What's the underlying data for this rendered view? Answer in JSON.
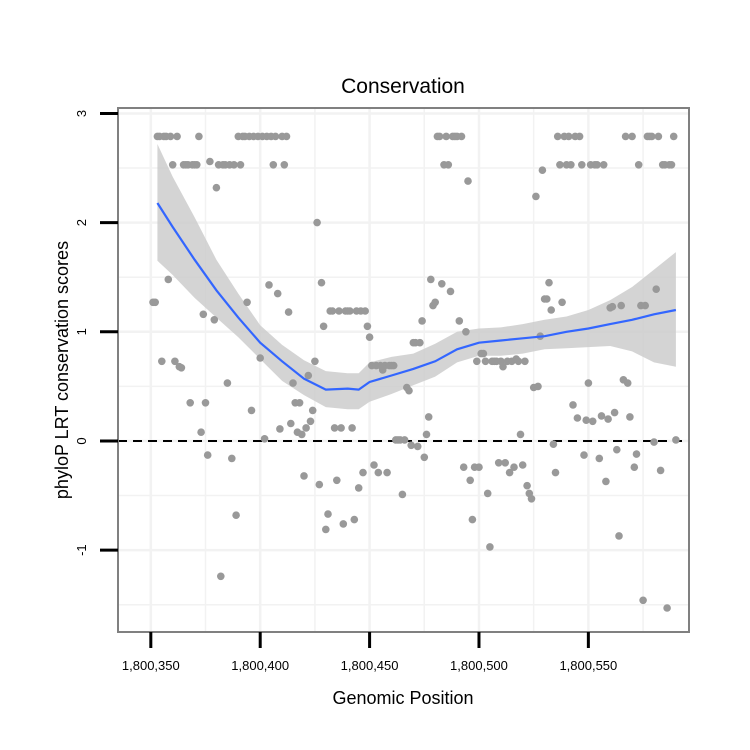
{
  "chart_data": {
    "type": "scatter",
    "title": "Conservation",
    "xlabel": "Genomic Position",
    "ylabel": "phyloP LRT conservation scores",
    "xlim": [
      1800335,
      1800596
    ],
    "ylim": [
      -1.75,
      3.05
    ],
    "x_ticks": [
      1800350,
      1800400,
      1800450,
      1800500,
      1800550
    ],
    "x_tick_labels": [
      "1,800,350",
      "1,800,400",
      "1,800,450",
      "1,800,500",
      "1,800,550"
    ],
    "y_ticks": [
      -1,
      0,
      1,
      2,
      3
    ],
    "y_tick_labels": [
      "-1",
      "0",
      "1",
      "2",
      "3"
    ],
    "reference_line": {
      "y": 0,
      "style": "dashed"
    },
    "points": [
      [
        1800351,
        1.27
      ],
      [
        1800352,
        1.27
      ],
      [
        1800353,
        2.79
      ],
      [
        1800354,
        2.79
      ],
      [
        1800355,
        0.73
      ],
      [
        1800356,
        2.79
      ],
      [
        1800357,
        2.79
      ],
      [
        1800358,
        1.48
      ],
      [
        1800359,
        2.79
      ],
      [
        1800360,
        2.53
      ],
      [
        1800361,
        0.73
      ],
      [
        1800362,
        2.79
      ],
      [
        1800363,
        0.68
      ],
      [
        1800364,
        0.67
      ],
      [
        1800365,
        2.53
      ],
      [
        1800366,
        2.53
      ],
      [
        1800367,
        2.53
      ],
      [
        1800368,
        0.35
      ],
      [
        1800369,
        2.53
      ],
      [
        1800370,
        2.53
      ],
      [
        1800371,
        2.53
      ],
      [
        1800372,
        2.79
      ],
      [
        1800373,
        0.08
      ],
      [
        1800374,
        1.16
      ],
      [
        1800375,
        0.35
      ],
      [
        1800376,
        -0.13
      ],
      [
        1800377,
        2.56
      ],
      [
        1800379,
        1.11
      ],
      [
        1800380,
        2.32
      ],
      [
        1800381,
        2.53
      ],
      [
        1800382,
        -1.24
      ],
      [
        1800383,
        2.53
      ],
      [
        1800384,
        2.53
      ],
      [
        1800385,
        0.53
      ],
      [
        1800386,
        2.53
      ],
      [
        1800387,
        -0.16
      ],
      [
        1800388,
        2.53
      ],
      [
        1800389,
        -0.68
      ],
      [
        1800390,
        2.79
      ],
      [
        1800391,
        2.53
      ],
      [
        1800392,
        2.79
      ],
      [
        1800393,
        2.79
      ],
      [
        1800394,
        1.27
      ],
      [
        1800395,
        2.79
      ],
      [
        1800396,
        0.28
      ],
      [
        1800397,
        2.79
      ],
      [
        1800399,
        2.79
      ],
      [
        1800400,
        0.76
      ],
      [
        1800401,
        2.79
      ],
      [
        1800402,
        0.02
      ],
      [
        1800403,
        2.79
      ],
      [
        1800404,
        1.43
      ],
      [
        1800405,
        2.79
      ],
      [
        1800406,
        2.53
      ],
      [
        1800407,
        2.79
      ],
      [
        1800408,
        1.35
      ],
      [
        1800409,
        0.11
      ],
      [
        1800410,
        2.79
      ],
      [
        1800411,
        2.53
      ],
      [
        1800412,
        2.79
      ],
      [
        1800413,
        1.18
      ],
      [
        1800414,
        0.16
      ],
      [
        1800415,
        0.53
      ],
      [
        1800416,
        0.35
      ],
      [
        1800417,
        0.08
      ],
      [
        1800418,
        0.35
      ],
      [
        1800419,
        0.06
      ],
      [
        1800420,
        -0.32
      ],
      [
        1800421,
        0.12
      ],
      [
        1800422,
        0.6
      ],
      [
        1800423,
        0.18
      ],
      [
        1800424,
        0.28
      ],
      [
        1800425,
        0.73
      ],
      [
        1800426,
        2.0
      ],
      [
        1800427,
        -0.4
      ],
      [
        1800428,
        1.45
      ],
      [
        1800429,
        1.05
      ],
      [
        1800430,
        -0.81
      ],
      [
        1800431,
        -0.67
      ],
      [
        1800432,
        1.19
      ],
      [
        1800433,
        1.19
      ],
      [
        1800434,
        0.12
      ],
      [
        1800435,
        -0.36
      ],
      [
        1800436,
        1.19
      ],
      [
        1800437,
        0.12
      ],
      [
        1800438,
        -0.76
      ],
      [
        1800439,
        1.19
      ],
      [
        1800440,
        1.19
      ],
      [
        1800441,
        1.19
      ],
      [
        1800442,
        0.12
      ],
      [
        1800443,
        -0.72
      ],
      [
        1800444,
        1.19
      ],
      [
        1800445,
        -0.43
      ],
      [
        1800446,
        1.19
      ],
      [
        1800447,
        -0.29
      ],
      [
        1800448,
        1.19
      ],
      [
        1800449,
        1.05
      ],
      [
        1800450,
        0.95
      ],
      [
        1800451,
        0.69
      ],
      [
        1800452,
        -0.22
      ],
      [
        1800453,
        0.69
      ],
      [
        1800454,
        -0.29
      ],
      [
        1800455,
        0.69
      ],
      [
        1800456,
        0.65
      ],
      [
        1800457,
        0.69
      ],
      [
        1800458,
        -0.29
      ],
      [
        1800459,
        0.69
      ],
      [
        1800460,
        0.69
      ],
      [
        1800461,
        0.69
      ],
      [
        1800462,
        0.01
      ],
      [
        1800463,
        0.01
      ],
      [
        1800464,
        0.01
      ],
      [
        1800465,
        -0.49
      ],
      [
        1800466,
        0.01
      ],
      [
        1800467,
        0.49
      ],
      [
        1800468,
        0.46
      ],
      [
        1800469,
        -0.04
      ],
      [
        1800470,
        0.9
      ],
      [
        1800471,
        0.9
      ],
      [
        1800472,
        -0.05
      ],
      [
        1800473,
        0.9
      ],
      [
        1800474,
        1.1
      ],
      [
        1800475,
        -0.15
      ],
      [
        1800476,
        0.06
      ],
      [
        1800477,
        0.22
      ],
      [
        1800478,
        1.48
      ],
      [
        1800479,
        1.24
      ],
      [
        1800480,
        1.27
      ],
      [
        1800481,
        2.79
      ],
      [
        1800482,
        2.79
      ],
      [
        1800483,
        1.44
      ],
      [
        1800484,
        2.53
      ],
      [
        1800485,
        2.79
      ],
      [
        1800486,
        2.53
      ],
      [
        1800487,
        1.37
      ],
      [
        1800488,
        2.79
      ],
      [
        1800489,
        2.79
      ],
      [
        1800490,
        2.79
      ],
      [
        1800491,
        1.1
      ],
      [
        1800492,
        2.79
      ],
      [
        1800493,
        -0.24
      ],
      [
        1800494,
        1.0
      ],
      [
        1800495,
        2.38
      ],
      [
        1800496,
        -0.36
      ],
      [
        1800497,
        -0.72
      ],
      [
        1800498,
        -0.24
      ],
      [
        1800499,
        0.73
      ],
      [
        1800500,
        -0.24
      ],
      [
        1800501,
        0.8
      ],
      [
        1800502,
        0.8
      ],
      [
        1800503,
        0.73
      ],
      [
        1800504,
        -0.48
      ],
      [
        1800505,
        -0.97
      ],
      [
        1800506,
        0.73
      ],
      [
        1800507,
        0.73
      ],
      [
        1800508,
        0.73
      ],
      [
        1800509,
        -0.2
      ],
      [
        1800510,
        0.73
      ],
      [
        1800511,
        0.68
      ],
      [
        1800512,
        -0.2
      ],
      [
        1800513,
        0.73
      ],
      [
        1800514,
        -0.29
      ],
      [
        1800515,
        0.73
      ],
      [
        1800516,
        -0.24
      ],
      [
        1800517,
        0.75
      ],
      [
        1800518,
        0.73
      ],
      [
        1800519,
        0.06
      ],
      [
        1800520,
        -0.22
      ],
      [
        1800521,
        0.73
      ],
      [
        1800522,
        -0.41
      ],
      [
        1800523,
        -0.48
      ],
      [
        1800524,
        -0.53
      ],
      [
        1800525,
        0.49
      ],
      [
        1800526,
        2.24
      ],
      [
        1800527,
        0.5
      ],
      [
        1800528,
        0.96
      ],
      [
        1800529,
        2.48
      ],
      [
        1800530,
        1.3
      ],
      [
        1800531,
        1.3
      ],
      [
        1800532,
        1.45
      ],
      [
        1800533,
        1.2
      ],
      [
        1800534,
        -0.03
      ],
      [
        1800535,
        -0.29
      ],
      [
        1800536,
        2.79
      ],
      [
        1800537,
        2.53
      ],
      [
        1800538,
        1.27
      ],
      [
        1800539,
        2.79
      ],
      [
        1800540,
        2.53
      ],
      [
        1800541,
        2.79
      ],
      [
        1800542,
        2.53
      ],
      [
        1800543,
        0.33
      ],
      [
        1800544,
        2.79
      ],
      [
        1800545,
        0.21
      ],
      [
        1800546,
        2.79
      ],
      [
        1800547,
        2.53
      ],
      [
        1800548,
        -0.13
      ],
      [
        1800549,
        0.19
      ],
      [
        1800550,
        0.53
      ],
      [
        1800551,
        2.53
      ],
      [
        1800552,
        0.18
      ],
      [
        1800553,
        2.53
      ],
      [
        1800554,
        2.53
      ],
      [
        1800555,
        -0.16
      ],
      [
        1800556,
        0.23
      ],
      [
        1800557,
        2.53
      ],
      [
        1800558,
        -0.37
      ],
      [
        1800559,
        0.2
      ],
      [
        1800560,
        1.22
      ],
      [
        1800561,
        1.23
      ],
      [
        1800562,
        0.26
      ],
      [
        1800563,
        -0.08
      ],
      [
        1800564,
        -0.87
      ],
      [
        1800565,
        1.24
      ],
      [
        1800566,
        0.56
      ],
      [
        1800567,
        2.79
      ],
      [
        1800568,
        0.53
      ],
      [
        1800569,
        0.22
      ],
      [
        1800570,
        2.79
      ],
      [
        1800571,
        -0.24
      ],
      [
        1800572,
        -0.12
      ],
      [
        1800573,
        2.53
      ],
      [
        1800574,
        1.24
      ],
      [
        1800575,
        -1.46
      ],
      [
        1800576,
        1.24
      ],
      [
        1800577,
        2.79
      ],
      [
        1800578,
        2.79
      ],
      [
        1800579,
        2.79
      ],
      [
        1800580,
        -0.01
      ],
      [
        1800581,
        1.39
      ],
      [
        1800582,
        2.79
      ],
      [
        1800583,
        -0.27
      ],
      [
        1800584,
        2.53
      ],
      [
        1800585,
        2.53
      ],
      [
        1800586,
        -1.53
      ],
      [
        1800587,
        2.53
      ],
      [
        1800588,
        2.53
      ],
      [
        1800589,
        2.79
      ],
      [
        1800590,
        0.01
      ]
    ],
    "smooth": {
      "x": [
        1800353,
        1800360,
        1800370,
        1800380,
        1800390,
        1800400,
        1800410,
        1800420,
        1800430,
        1800440,
        1800445,
        1800450,
        1800460,
        1800470,
        1800480,
        1800490,
        1800500,
        1800510,
        1800520,
        1800530,
        1800540,
        1800550,
        1800560,
        1800570,
        1800580,
        1800590
      ],
      "y": [
        2.18,
        1.96,
        1.66,
        1.38,
        1.13,
        0.9,
        0.73,
        0.57,
        0.47,
        0.48,
        0.47,
        0.54,
        0.6,
        0.66,
        0.73,
        0.84,
        0.9,
        0.92,
        0.94,
        0.96,
        1.0,
        1.03,
        1.07,
        1.11,
        1.16,
        1.2
      ],
      "lower": [
        1.65,
        1.52,
        1.31,
        1.13,
        0.95,
        0.75,
        0.55,
        0.42,
        0.31,
        0.29,
        0.29,
        0.36,
        0.43,
        0.51,
        0.59,
        0.72,
        0.78,
        0.78,
        0.8,
        0.84,
        0.85,
        0.86,
        0.87,
        0.82,
        0.72,
        0.68
      ],
      "upper": [
        2.72,
        2.42,
        2.05,
        1.66,
        1.35,
        1.06,
        0.88,
        0.74,
        0.64,
        0.62,
        0.62,
        0.72,
        0.77,
        0.8,
        0.89,
        1.0,
        1.03,
        1.04,
        1.07,
        1.11,
        1.14,
        1.2,
        1.29,
        1.41,
        1.57,
        1.73
      ]
    },
    "colors": {
      "points": "#999999",
      "smooth_line": "#3366ff",
      "confidence_band": "#cccccc",
      "gridlines": "#f2f2f2",
      "panel_border": "#808080",
      "reference_line": "#000000"
    }
  }
}
